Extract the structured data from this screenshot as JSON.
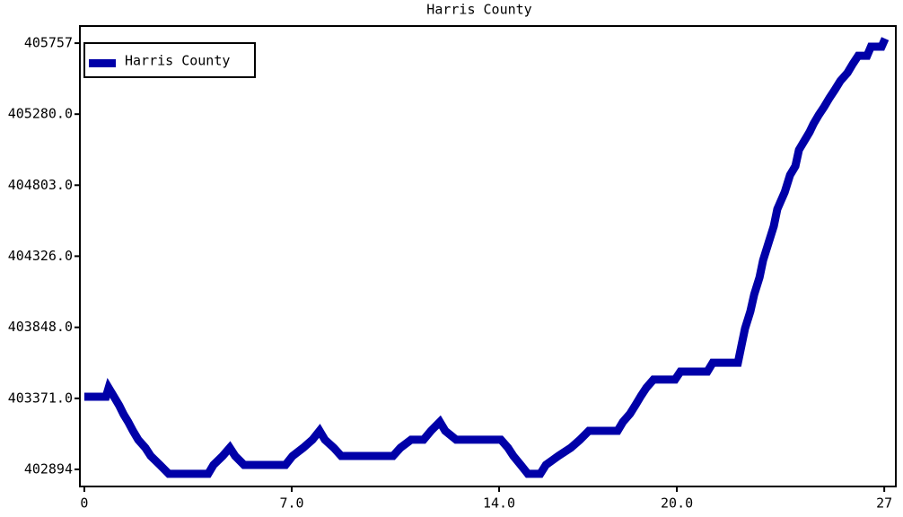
{
  "chart_data": {
    "type": "line",
    "title": "Harris County",
    "series": [
      {
        "name": "Harris County",
        "color": "#0000a8",
        "x": [
          0,
          0.73,
          0.82,
          1.0,
          1.18,
          1.33,
          1.48,
          1.64,
          1.82,
          2.06,
          2.24,
          2.55,
          2.85,
          4.18,
          4.36,
          4.67,
          4.91,
          5.09,
          5.39,
          6.79,
          7.03,
          7.39,
          7.7,
          7.94,
          8.12,
          8.42,
          8.67,
          10.42,
          10.67,
          11.03,
          11.45,
          11.7,
          12.0,
          12.18,
          12.55,
          14.06,
          14.3,
          14.48,
          14.73,
          14.97,
          15.39,
          15.58,
          16.0,
          16.42,
          16.73,
          17.03,
          18.0,
          18.18,
          18.42,
          18.61,
          18.79,
          18.97,
          19.21,
          19.94,
          20.12,
          21.03,
          21.21,
          22.06,
          22.18,
          22.3,
          22.48,
          22.61,
          22.79,
          22.91,
          23.09,
          23.27,
          23.39,
          23.64,
          23.82,
          24.0,
          24.12,
          24.3,
          24.48,
          24.61,
          24.79,
          24.97,
          25.15,
          25.33,
          25.52,
          25.76,
          25.94,
          26.12,
          26.42,
          26.55,
          26.91,
          27.03
        ],
        "values": [
          403382,
          403382,
          403442,
          403382,
          403322,
          403262,
          403213,
          403153,
          403093,
          403039,
          402984,
          402924,
          402864,
          402864,
          402924,
          402984,
          403039,
          402984,
          402924,
          402924,
          402984,
          403039,
          403093,
          403153,
          403093,
          403039,
          402984,
          402984,
          403039,
          403093,
          403093,
          403153,
          403213,
          403153,
          403093,
          403093,
          403039,
          402984,
          402924,
          402864,
          402864,
          402924,
          402984,
          403039,
          403093,
          403153,
          403153,
          403213,
          403268,
          403328,
          403388,
          403442,
          403497,
          403497,
          403551,
          403551,
          403610,
          403610,
          403726,
          403840,
          403955,
          404069,
          404184,
          404298,
          404413,
          404527,
          404642,
          404756,
          404871,
          404931,
          405040,
          405100,
          405160,
          405214,
          405275,
          405329,
          405389,
          405443,
          405504,
          405558,
          405618,
          405672,
          405672,
          405733,
          405733,
          405787
        ]
      }
    ],
    "xlim": [
      -0.15,
      27.39
    ],
    "ylim": [
      402779,
      405872
    ],
    "xticks": [
      0,
      {
        "value": 7,
        "label": "7.0"
      },
      {
        "value": 14,
        "label": "14.0"
      },
      {
        "value": 20,
        "label": "20.0"
      },
      27
    ],
    "yticks": [
      402894,
      {
        "value": 403371,
        "label": "403371.0"
      },
      {
        "value": 403848,
        "label": "403848.0"
      },
      {
        "value": 404326,
        "label": "404326.0"
      },
      {
        "value": 404803,
        "label": "404803.0"
      },
      {
        "value": 405280,
        "label": "405280.0"
      },
      405757
    ],
    "legend": "upper left"
  }
}
